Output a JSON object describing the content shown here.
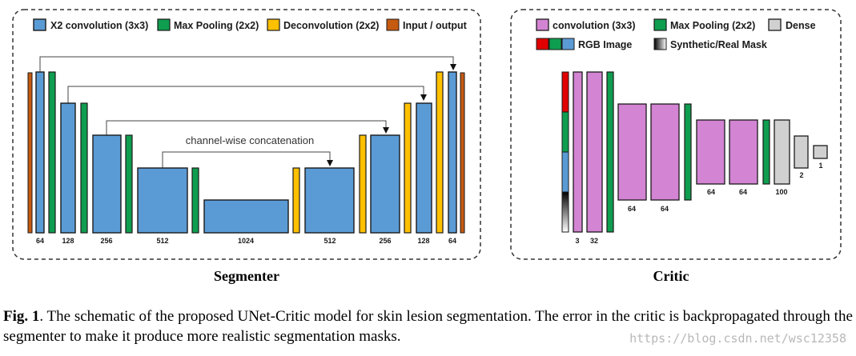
{
  "segmenter": {
    "title": "Segmenter",
    "legend": {
      "conv": "X2 convolution (3x3)",
      "pool": "Max Pooling (2x2)",
      "deconv": "Deconvolution (2x2)",
      "io": "Input / output"
    },
    "concat_label": "channel-wise concatenation",
    "channels": [
      "64",
      "128",
      "256",
      "512",
      "1024",
      "512",
      "256",
      "128",
      "64"
    ]
  },
  "critic": {
    "title": "Critic",
    "legend": {
      "conv": "convolution (3x3)",
      "pool": "Max Pooling (2x2)",
      "dense": "Dense",
      "rgb": "RGB Image",
      "mask": "Synthetic/Real Mask"
    },
    "channels": [
      "3",
      "32",
      "64",
      "64",
      "64",
      "64",
      "100",
      "2",
      "1"
    ]
  },
  "caption": {
    "label": "Fig. 1",
    "text": ". The schematic of the proposed UNet-Critic model for skin lesion segmentation. The error in the critic is backpropagated through the segmenter to make it produce more realistic segmentation masks."
  },
  "watermark": "https://blog.csdn.net/wsc12358",
  "colors": {
    "conv_blue": "#5b9bd5",
    "pool_green": "#0f9d4f",
    "deconv_yellow": "#ffc000",
    "io_brown": "#c55a11",
    "critic_conv": "#d384d3",
    "dense_gray": "#d0d0d0",
    "rgb_red": "#e00000"
  }
}
